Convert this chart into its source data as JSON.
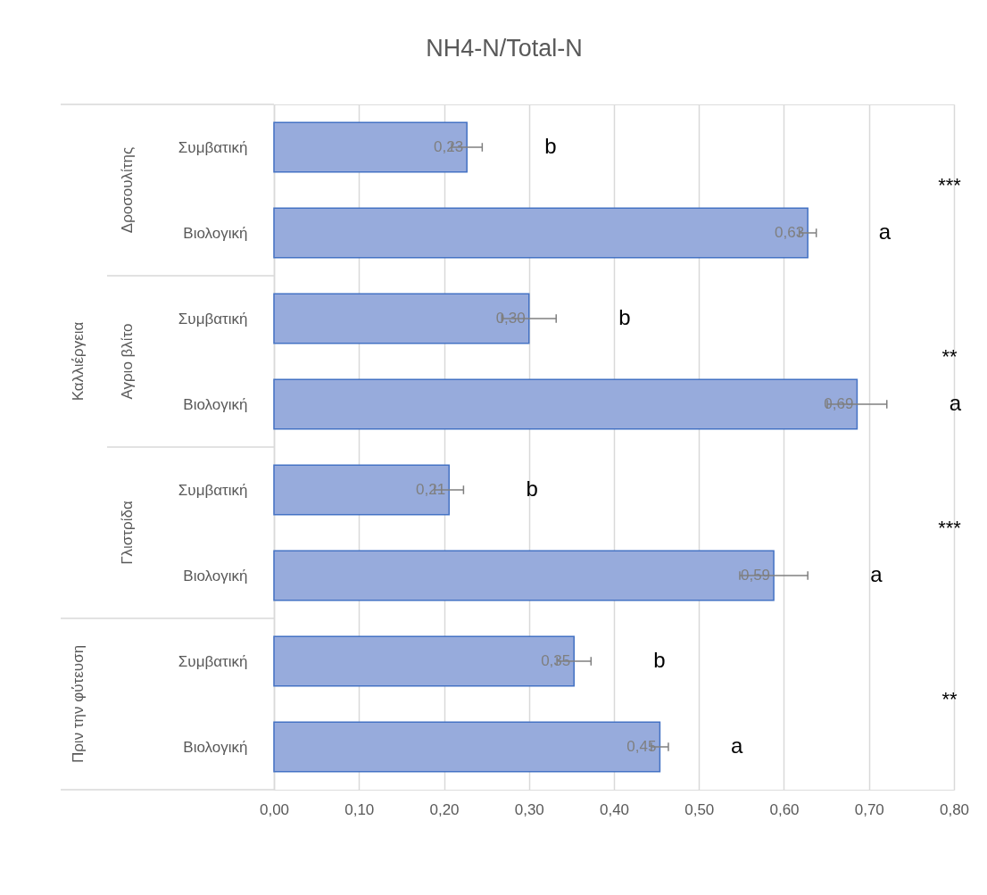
{
  "chart_data": {
    "type": "bar",
    "orientation": "horizontal",
    "title": "NH4-N/Total-N",
    "categories": [
      "Συμβατική",
      "Βιολογική",
      "Συμβατική",
      "Βιολογική",
      "Συμβατική",
      "Βιολογική",
      "Συμβατική",
      "Βιολογική"
    ],
    "values": [
      0.227,
      0.628,
      0.3,
      0.686,
      0.206,
      0.588,
      0.353,
      0.454
    ],
    "errors": [
      0.018,
      0.01,
      0.032,
      0.035,
      0.017,
      0.04,
      0.02,
      0.01
    ],
    "value_labels": [
      "0,23",
      "0,63",
      "0,30",
      "0,69",
      "0,21",
      "0,59",
      "0,35",
      "0,45"
    ],
    "color": "#97abdc",
    "xlim": [
      0,
      0.8
    ],
    "xticks": [
      {
        "value": 0,
        "label": "0,00"
      },
      {
        "value": 0.1,
        "label": "0,10"
      },
      {
        "value": 0.2,
        "label": "0,20"
      },
      {
        "value": 0.3,
        "label": "0,30"
      },
      {
        "value": 0.4,
        "label": "0,40"
      },
      {
        "value": 0.5,
        "label": "0,50"
      },
      {
        "value": 0.6,
        "label": "0,60"
      },
      {
        "value": 0.7,
        "label": "0,70"
      },
      {
        "value": 0.8,
        "label": "0,80"
      }
    ],
    "grid": "x",
    "annotations": [
      "b",
      "a",
      "b",
      "a",
      "b",
      "a",
      "b",
      "a",
      "***",
      "**",
      "***",
      "**",
      "Δροσουλίτης",
      "Αγριο βλίτο",
      "Γλιστρίδα",
      "Πριν την φύτευση",
      "Καλλιέργεια"
    ]
  }
}
